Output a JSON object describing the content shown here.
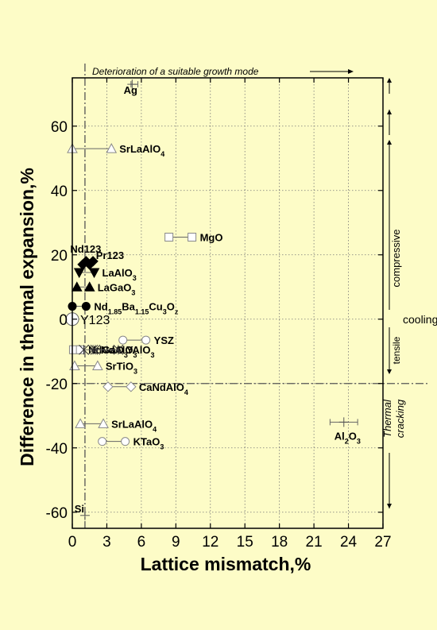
{
  "chart_data": {
    "type": "scatter",
    "title": "",
    "xlabel": "Lattice mismatch,%",
    "ylabel": "Difference in thermal expansion,%",
    "xlim": [
      0,
      27
    ],
    "ylim": [
      -65,
      75
    ],
    "xticks": [
      0,
      3,
      6,
      9,
      12,
      15,
      18,
      21,
      24,
      27
    ],
    "yticks": [
      -60,
      -40,
      -20,
      0,
      20,
      40,
      60
    ],
    "grid": true,
    "reference_lines": {
      "vertical_x": 1.1,
      "horizontal_y": -20
    },
    "side_annotations": {
      "top_note": "Deterioration of a suitable growth mode",
      "compressive": "compressive",
      "cooling": "cooling",
      "tensile": "tensile",
      "thermal": "Thermal",
      "cracking": "cracking"
    },
    "series": [
      {
        "label": "Ag",
        "marker": "cross",
        "x": [
          5.2
        ],
        "y": [
          73
        ],
        "xerr": [
          0.1,
          0.5
        ]
      },
      {
        "label": "SrLaAlO",
        "sub": "4",
        "marker": "triangle-open",
        "x": [
          1.7
        ],
        "y": [
          53
        ],
        "xerr": [
          1.7,
          1.7
        ]
      },
      {
        "label": "MgO",
        "marker": "square-open",
        "x": [
          9.4
        ],
        "y": [
          25.5
        ],
        "xerr": [
          1.0,
          1.0
        ]
      },
      {
        "label": "Nd123",
        "marker": "diamond-filled",
        "x": [
          1.2
        ],
        "y": [
          17
        ],
        "xerr": [
          0.3,
          0.3
        ]
      },
      {
        "label": "Pr123",
        "marker": "diamond-filled",
        "x": [
          1.5
        ],
        "y": [
          18
        ],
        "xerr": [
          0.3,
          0.3
        ]
      },
      {
        "label": "LaAlO",
        "sub": "3",
        "marker": "triangle-down-filled",
        "x": [
          1.1
        ],
        "y": [
          14.5
        ],
        "xerr": [
          0.5,
          0.8
        ]
      },
      {
        "label": "LaGaO",
        "sub": "3",
        "marker": "triangle-filled",
        "x": [
          0.9
        ],
        "y": [
          10
        ],
        "xerr": [
          0.5,
          0.6
        ]
      },
      {
        "label": "Nd1.85Ba1.15Cu3Oz",
        "marker": "circle-filled",
        "x": [
          0.6
        ],
        "y": [
          4
        ],
        "xerr": [
          0.6,
          0.6
        ]
      },
      {
        "label": "Y123",
        "marker": "circle-open",
        "x": [
          0
        ],
        "y": [
          0
        ],
        "xerr": [
          0,
          0
        ]
      },
      {
        "label": "YSZ",
        "marker": "circle-open",
        "x": [
          5.4
        ],
        "y": [
          -6.5
        ],
        "xerr": [
          1.0,
          1.0
        ]
      },
      {
        "label": "NdGaO",
        "sub": "3",
        "marker": "square-open",
        "x": [
          0.4
        ],
        "y": [
          -9.5
        ],
        "xerr": [
          0.3,
          0.3
        ]
      },
      {
        "label": "NdAlO",
        "sub": "3",
        "marker": "star",
        "x": [
          1.4
        ],
        "y": [
          -9.5
        ],
        "xerr": [
          0.4,
          0.4
        ]
      },
      {
        "label": "YAlO",
        "sub": "3",
        "marker": "star",
        "x": [
          3.0
        ],
        "y": [
          -9.5
        ],
        "xerr": [
          1.0,
          1.0
        ]
      },
      {
        "label": "SrTiO",
        "sub": "3",
        "marker": "triangle-open",
        "x": [
          1.2
        ],
        "y": [
          -14.5
        ],
        "xerr": [
          1.0,
          1.0
        ]
      },
      {
        "label": "CaNdAlO",
        "sub": "4",
        "marker": "diamond-open",
        "x": [
          4.1
        ],
        "y": [
          -21
        ],
        "xerr": [
          1.0,
          1.0
        ]
      },
      {
        "label": "SrLaAlO",
        "sub": "4",
        "marker": "triangle-open",
        "x": [
          1.7
        ],
        "y": [
          -32.5
        ],
        "xerr": [
          1.0,
          1.0
        ]
      },
      {
        "label": "KTaO",
        "sub": "3",
        "marker": "circle-open",
        "x": [
          3.6
        ],
        "y": [
          -38
        ],
        "xerr": [
          1.0,
          1.0
        ]
      },
      {
        "label": "Al2O3",
        "marker": "cross",
        "x": [
          23.6
        ],
        "y": [
          -32
        ],
        "xerr": [
          1.2,
          1.2
        ]
      },
      {
        "label": "Si",
        "marker": "cross",
        "x": [
          1.1
        ],
        "y": [
          -61
        ],
        "xerr": [
          0,
          0
        ]
      }
    ]
  }
}
